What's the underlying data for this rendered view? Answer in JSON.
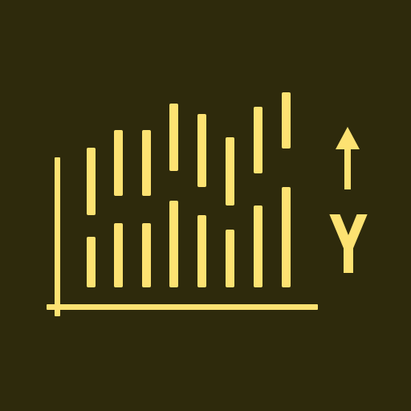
{
  "icon": {
    "name": "chart-y-axis-icon",
    "background_color": "#2e2a0c",
    "foreground_color": "#fde272",
    "axis_letter": "Y"
  }
}
